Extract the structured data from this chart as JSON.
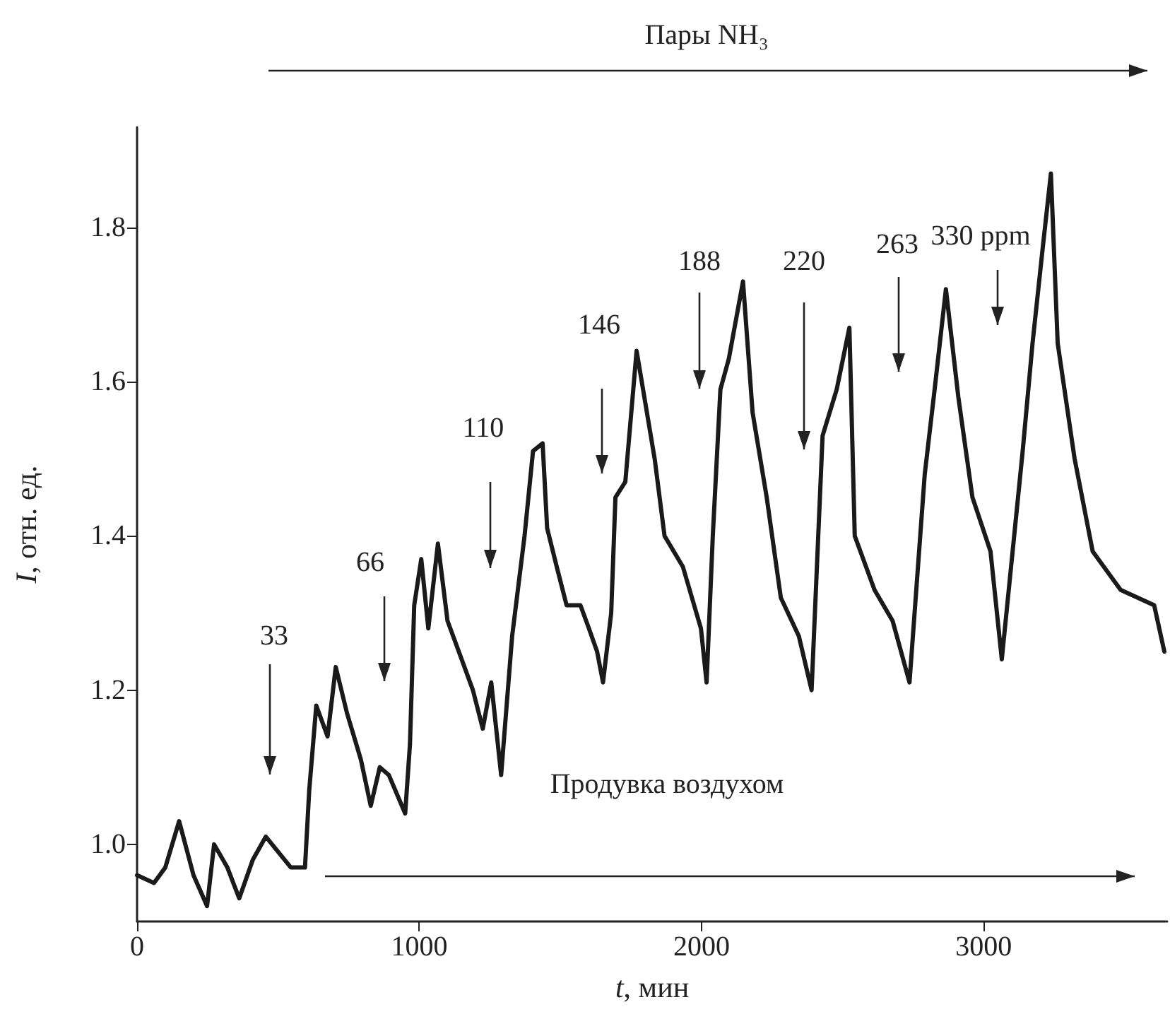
{
  "chart_data": {
    "type": "line",
    "xlabel": "t, мин",
    "ylabel": "I, отн. ед.",
    "xlim": [
      0,
      3650
    ],
    "xticks": [
      0,
      1000,
      2000,
      3000
    ],
    "ylim": [
      0.9,
      1.93
    ],
    "yticks": [
      {
        "value": 1,
        "label": "1.0"
      },
      {
        "value": 1.2,
        "label": "1.2"
      },
      {
        "value": 1.4,
        "label": "1.4"
      },
      {
        "value": 1.6,
        "label": "1.6"
      },
      {
        "value": 1.8,
        "label": "1.8"
      }
    ],
    "grid": false,
    "marker": "none",
    "line_style": "solid",
    "series": [
      {
        "color": "#1a1a1a",
        "x": [
          0,
          20,
          60,
          100,
          149,
          200,
          248,
          273,
          320,
          362,
          410,
          456,
          506,
          545,
          595,
          610,
          635,
          675,
          704,
          744,
          793,
          828,
          860,
          892,
          950,
          967,
          982,
          1007,
          1032,
          1066,
          1100,
          1140,
          1190,
          1225,
          1255,
          1290,
          1329,
          1373,
          1403,
          1437,
          1453,
          1487,
          1522,
          1571,
          1601,
          1630,
          1651,
          1680,
          1695,
          1730,
          1770,
          1834,
          1869,
          1934,
          1998,
          2018,
          2040,
          2067,
          2097,
          2147,
          2181,
          2231,
          2281,
          2345,
          2390,
          2429,
          2479,
          2524,
          2543,
          2613,
          2677,
          2737,
          2791,
          2826,
          2866,
          2910,
          2960,
          3024,
          3064,
          3138,
          3173,
          3208,
          3238,
          3262,
          3322,
          3386,
          3485,
          3604,
          3640
        ],
        "values": [
          0.96,
          null,
          0.95,
          0.97,
          1.03,
          0.96,
          0.92,
          1.0,
          0.97,
          0.93,
          0.98,
          1.01,
          null,
          0.97,
          0.97,
          1.07,
          1.18,
          1.14,
          1.23,
          1.17,
          1.11,
          1.05,
          1.1,
          1.09,
          1.04,
          1.13,
          1.31,
          1.37,
          1.28,
          1.39,
          1.29,
          1.25,
          1.2,
          1.15,
          1.21,
          1.09,
          1.27,
          1.4,
          1.51,
          1.52,
          1.41,
          1.36,
          1.31,
          1.31,
          1.28,
          1.25,
          1.21,
          1.3,
          1.45,
          1.47,
          1.64,
          1.5,
          1.4,
          1.36,
          1.28,
          1.21,
          1.4,
          1.59,
          1.63,
          1.73,
          1.56,
          1.45,
          1.32,
          1.27,
          1.2,
          1.53,
          1.59,
          1.67,
          1.4,
          1.33,
          1.29,
          1.21,
          1.48,
          1.59,
          1.72,
          1.58,
          1.45,
          1.38,
          1.24,
          1.51,
          1.65,
          1.77,
          1.87,
          1.65,
          1.5,
          1.38,
          1.33,
          1.31,
          1.25
        ]
      }
    ],
    "annotations": [
      "Пары NH₃",
      "Продувка воздухом",
      "33",
      "66",
      "110",
      "146",
      "188",
      "220",
      "263",
      "330 ppm"
    ]
  }
}
